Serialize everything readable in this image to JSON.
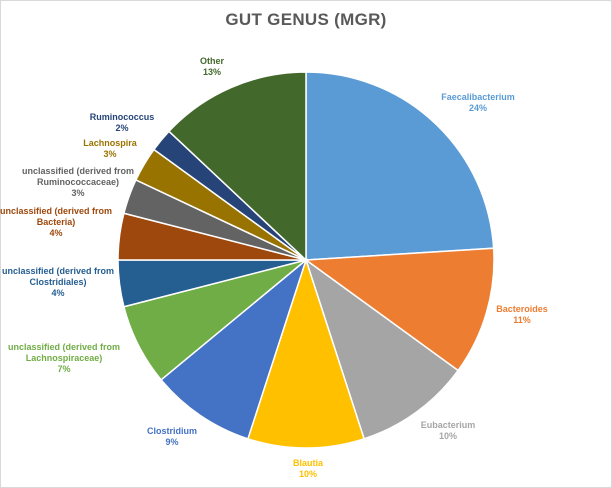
{
  "chart_data": {
    "type": "pie",
    "title": "GUT GENUS (MGR)",
    "slices": [
      {
        "name": "Faecalibacterium",
        "value": 24,
        "label": "24%",
        "color": "#5B9BD5"
      },
      {
        "name": "Bacteroides",
        "value": 11,
        "label": "11%",
        "color": "#ED7D31"
      },
      {
        "name": "Eubacterium",
        "value": 10,
        "label": "10%",
        "color": "#A5A5A5"
      },
      {
        "name": "Blautia",
        "value": 10,
        "label": "10%",
        "color": "#FFC000"
      },
      {
        "name": "Clostridium",
        "value": 9,
        "label": "9%",
        "color": "#4472C4"
      },
      {
        "name": "unclassified  (derived from Lachnospiraceae)",
        "value": 7,
        "label": "7%",
        "color": "#70AD47"
      },
      {
        "name": "unclassified  (derived from Clostridiales)",
        "value": 4,
        "label": "4%",
        "color": "#255E91"
      },
      {
        "name": "unclassified  (derived from Bacteria)",
        "value": 4,
        "label": "4%",
        "color": "#9E480E"
      },
      {
        "name": "unclassified  (derived from Ruminococcaceae)",
        "value": 3,
        "label": "3%",
        "color": "#636363"
      },
      {
        "name": "Lachnospira",
        "value": 3,
        "label": "3%",
        "color": "#997300"
      },
      {
        "name": "Ruminococcus",
        "value": 2,
        "label": "2%",
        "color": "#264478"
      },
      {
        "name": "Other",
        "value": 13,
        "label": "13%",
        "color": "#43682B"
      }
    ],
    "start_angle_deg": 0,
    "direction": "clockwise",
    "legend": "none",
    "data_labels": "outside"
  }
}
